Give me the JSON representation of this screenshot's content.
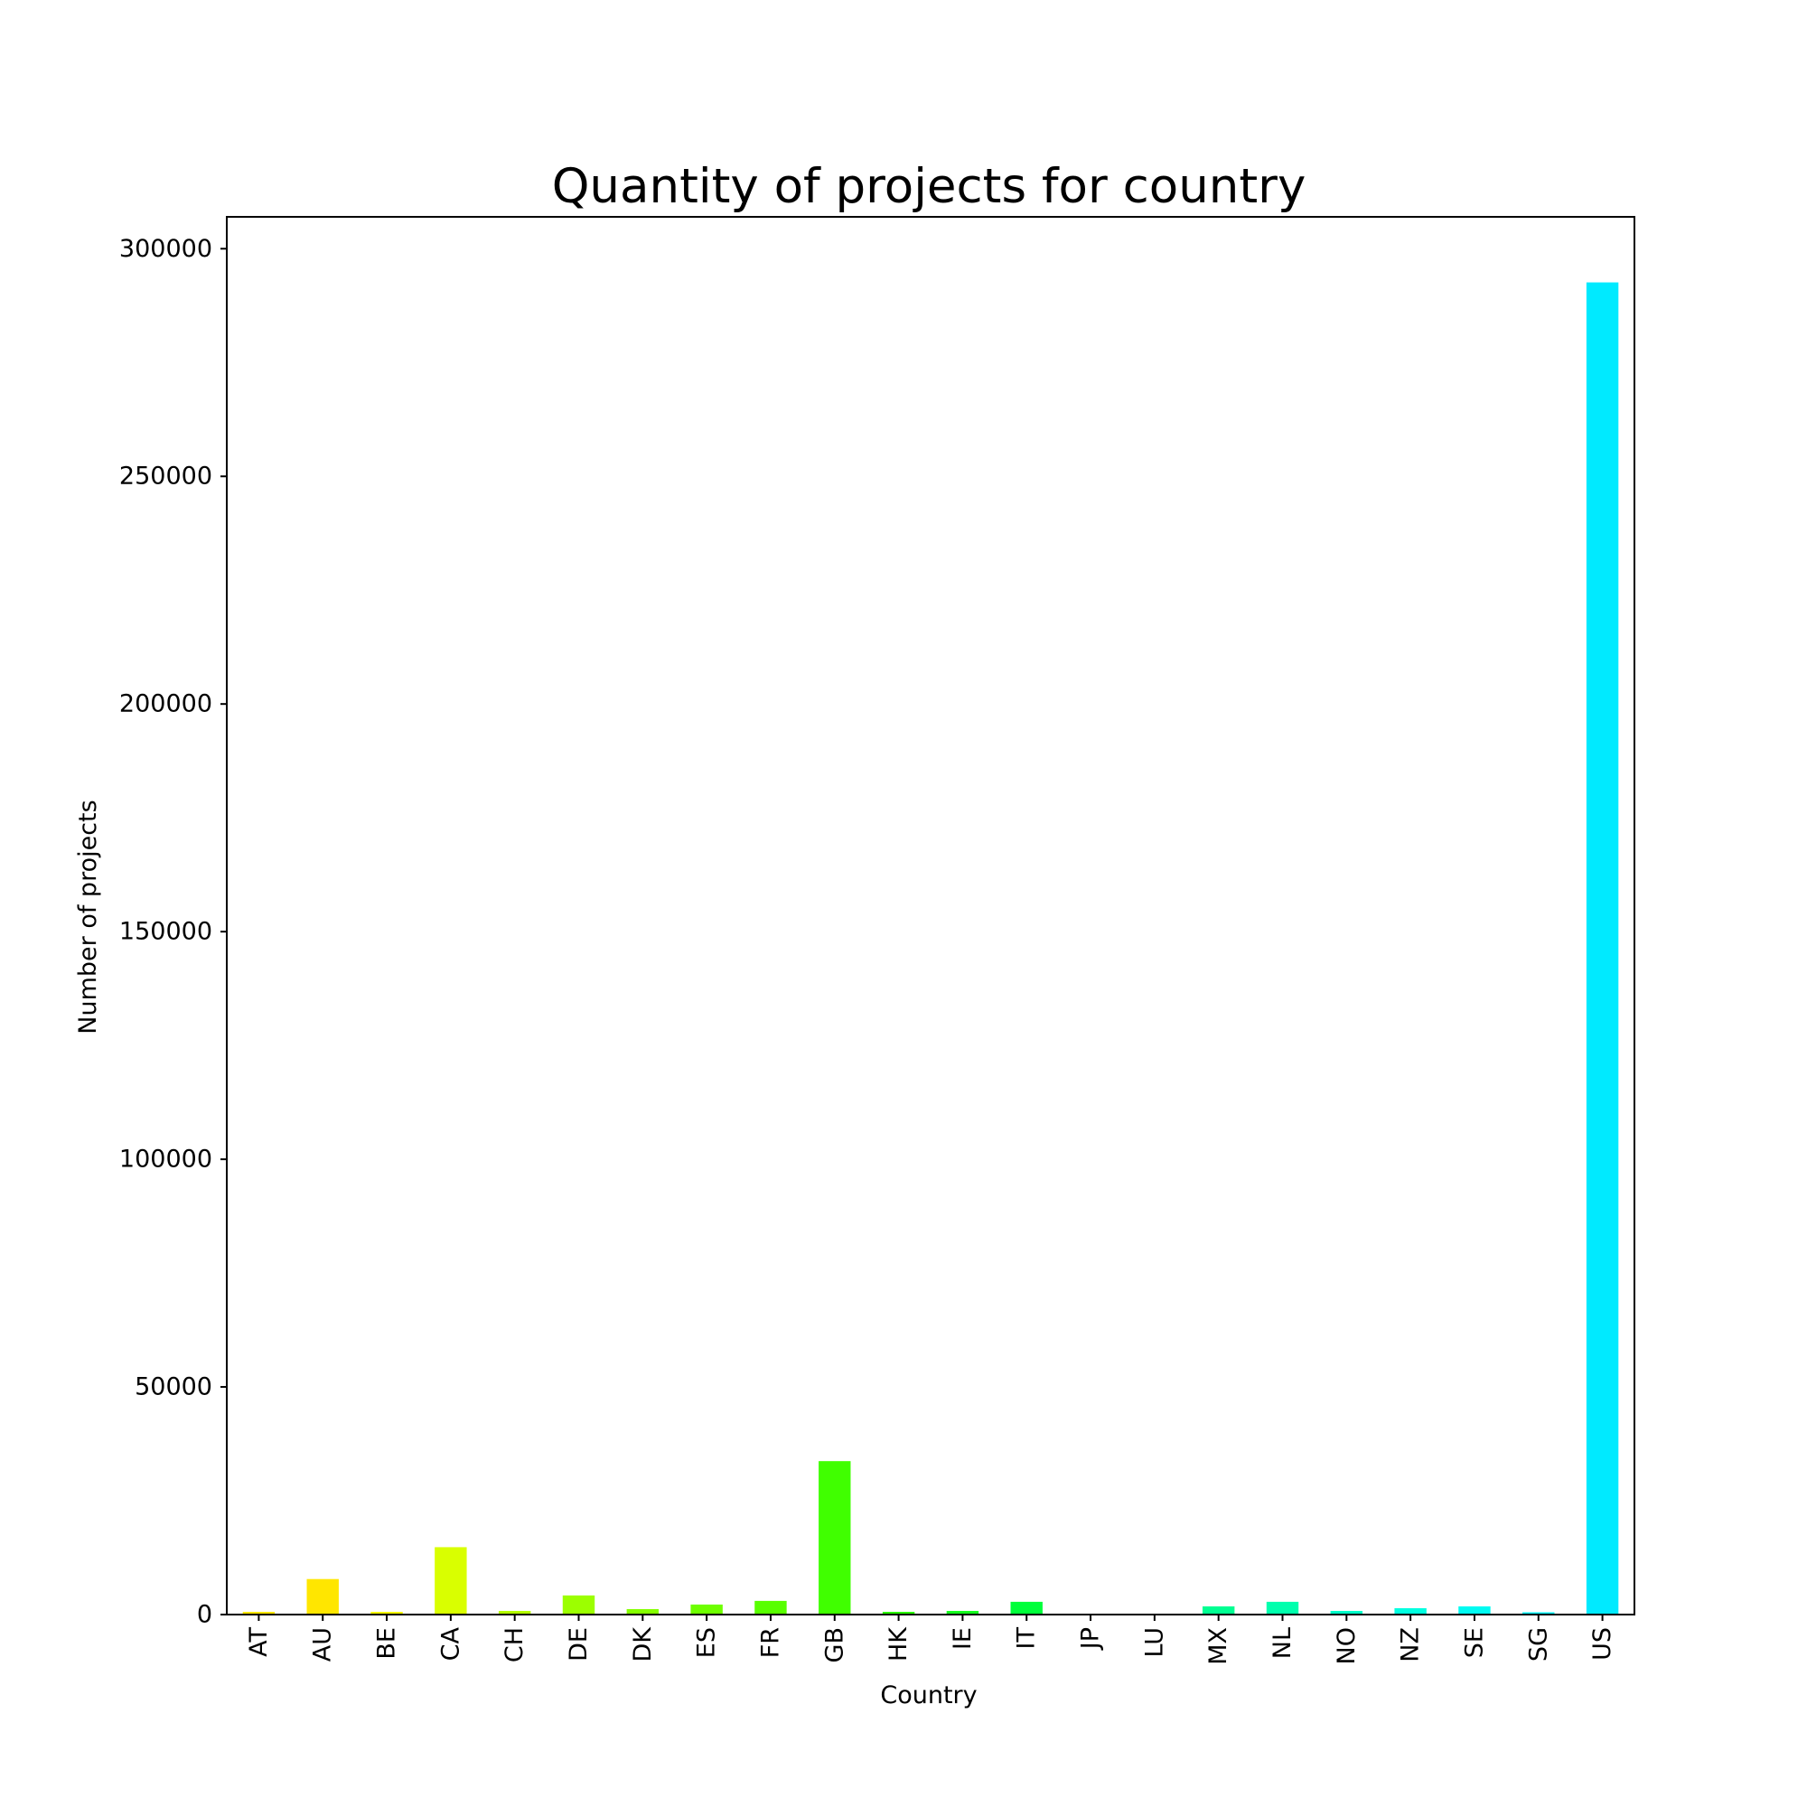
{
  "chart_data": {
    "type": "bar",
    "title": "Quantity of projects for country",
    "xlabel": "Country",
    "ylabel": "Number of projects",
    "ylim": [
      0,
      307000
    ],
    "yticks": [
      0,
      50000,
      100000,
      150000,
      200000,
      250000,
      300000
    ],
    "ytick_labels": [
      "0",
      "50000",
      "100000",
      "150000",
      "200000",
      "250000",
      "300000"
    ],
    "grid": false,
    "legend": "none",
    "categories": [
      "AT",
      "AU",
      "BE",
      "CA",
      "CH",
      "DE",
      "DK",
      "ES",
      "FR",
      "GB",
      "HK",
      "IE",
      "IT",
      "JP",
      "LU",
      "MX",
      "NL",
      "NO",
      "NZ",
      "SE",
      "SG",
      "US"
    ],
    "values": [
      600,
      7800,
      600,
      14800,
      800,
      4200,
      1200,
      2200,
      3000,
      33700,
      600,
      800,
      2800,
      40,
      60,
      1800,
      2800,
      800,
      1400,
      1800,
      500,
      292600
    ],
    "colors": [
      "#ffe600",
      "#ffe600",
      "#f3f600",
      "#d9ff00",
      "#b3ff00",
      "#9cff00",
      "#85ff00",
      "#6eff00",
      "#58ff00",
      "#40ff00",
      "#29ff00",
      "#14ff1e",
      "#00ff3a",
      "#00ff58",
      "#00ff75",
      "#00ff92",
      "#00ffad",
      "#00ffc8",
      "#00ffe0",
      "#00fbf2",
      "#00f2fa",
      "#00eaff"
    ]
  }
}
